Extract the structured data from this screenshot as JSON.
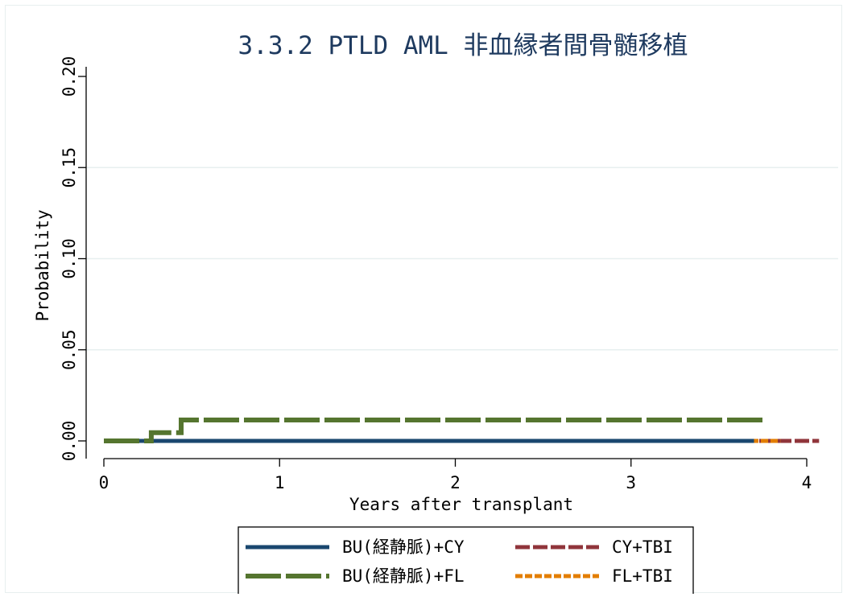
{
  "chart_data": {
    "type": "line",
    "title": "3.3.2 PTLD AML 非血縁者間骨髄移植",
    "xlabel": "Years after transplant",
    "ylabel": "Probability",
    "xlim": [
      0,
      4.1
    ],
    "ylim": [
      0,
      0.2
    ],
    "xticks": [
      0,
      1,
      2,
      3,
      4
    ],
    "xtick_labels": [
      "0",
      "1",
      "2",
      "3",
      "4"
    ],
    "yticks": [
      0,
      0.05,
      0.1,
      0.15,
      0.2
    ],
    "ytick_labels": [
      "0.00",
      "0.05",
      "0.10",
      "0.15",
      "0.20"
    ],
    "grid": "horizontal",
    "legend_position": "bottom",
    "series": [
      {
        "name": "BU(経静脈)+CY",
        "color": "#1a476f",
        "style": "solid",
        "x": [
          0,
          3.7
        ],
        "y": [
          0,
          0
        ]
      },
      {
        "name": "CY+TBI",
        "color": "#90353b",
        "style": "dash",
        "x": [
          0,
          4.07
        ],
        "y": [
          0,
          0
        ]
      },
      {
        "name": "BU(経静脈)+FL",
        "color": "#55752f",
        "style": "longdash",
        "x": [
          0,
          0.27,
          0.27,
          0.44,
          0.44,
          3.77
        ],
        "y": [
          0,
          0,
          0.0045,
          0.0045,
          0.0115,
          0.0115
        ]
      },
      {
        "name": "FL+TBI",
        "color": "#e37e00",
        "style": "shortdash",
        "x": [
          0,
          3.85
        ],
        "y": [
          0,
          0
        ]
      }
    ]
  }
}
